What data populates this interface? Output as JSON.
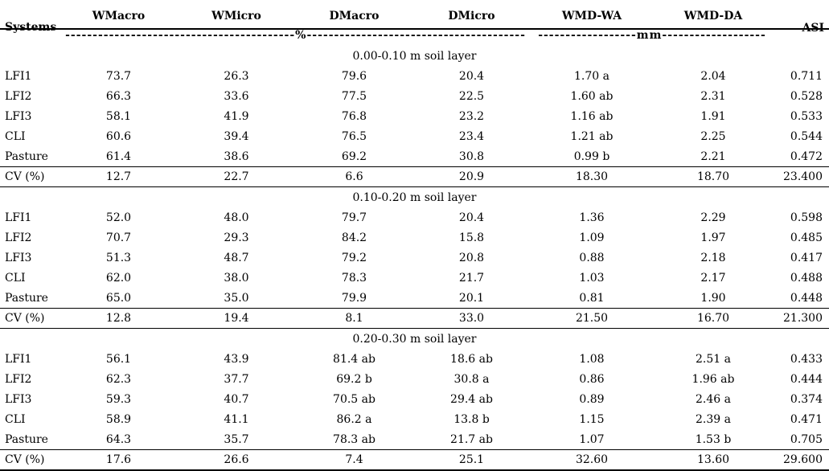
{
  "table": {
    "header": {
      "systems_label": "Systems",
      "columns": [
        "WMacro",
        "WMicro",
        "DMacro",
        "DMicro",
        "WMD-WA",
        "WMD-DA"
      ],
      "asi_label": "ASI",
      "percent_dashes": "------------------------------------------%----------------------------------------",
      "mm_dashes": "------------------mm-------------------",
      "percent_unit": "%",
      "mm_unit": "mm"
    },
    "sections": [
      {
        "title": "0.00-0.10 m soil layer",
        "rows": [
          {
            "system": "LFI1",
            "values": [
              "73.7",
              "26.3",
              "79.6",
              "20.4",
              "1.70 a",
              "2.04",
              "0.711"
            ]
          },
          {
            "system": "LFI2",
            "values": [
              "66.3",
              "33.6",
              "77.5",
              "22.5",
              "1.60 ab",
              "2.31",
              "0.528"
            ]
          },
          {
            "system": "LFI3",
            "values": [
              "58.1",
              "41.9",
              "76.8",
              "23.2",
              "1.16 ab",
              "1.91",
              "0.533"
            ]
          },
          {
            "system": "CLI",
            "values": [
              "60.6",
              "39.4",
              "76.5",
              "23.4",
              "1.21 ab",
              "2.25",
              "0.544"
            ]
          },
          {
            "system": "Pasture",
            "values": [
              "61.4",
              "38.6",
              "69.2",
              "30.8",
              "0.99 b",
              "2.21",
              "0.472"
            ]
          }
        ],
        "cv": {
          "system": "CV (%)",
          "values": [
            "12.7",
            "22.7",
            "6.6",
            "20.9",
            "18.30",
            "18.70",
            "23.400"
          ]
        }
      },
      {
        "title": "0.10-0.20 m soil layer",
        "rows": [
          {
            "system": "LFI1",
            "values": [
              "52.0",
              "48.0",
              "79.7",
              "20.4",
              "1.36",
              "2.29",
              "0.598"
            ]
          },
          {
            "system": "LFI2",
            "values": [
              "70.7",
              "29.3",
              "84.2",
              "15.8",
              "1.09",
              "1.97",
              "0.485"
            ]
          },
          {
            "system": "LFI3",
            "values": [
              "51.3",
              "48.7",
              "79.2",
              "20.8",
              "0.88",
              "2.18",
              "0.417"
            ]
          },
          {
            "system": "CLI",
            "values": [
              "62.0",
              "38.0",
              "78.3",
              "21.7",
              "1.03",
              "2.17",
              "0.488"
            ]
          },
          {
            "system": "Pasture",
            "values": [
              "65.0",
              "35.0",
              "79.9",
              "20.1",
              "0.81",
              "1.90",
              "0.448"
            ]
          }
        ],
        "cv": {
          "system": "CV (%)",
          "values": [
            "12.8",
            "19.4",
            "8.1",
            "33.0",
            "21.50",
            "16.70",
            "21.300"
          ]
        }
      },
      {
        "title": "0.20-0.30 m soil layer",
        "rows": [
          {
            "system": "LFI1",
            "values": [
              "56.1",
              "43.9",
              "81.4 ab",
              "18.6 ab",
              "1.08",
              "2.51 a",
              "0.433"
            ]
          },
          {
            "system": "LFI2",
            "values": [
              "62.3",
              "37.7",
              "69.2 b",
              "30.8 a",
              "0.86",
              "1.96 ab",
              "0.444"
            ]
          },
          {
            "system": "LFI3",
            "values": [
              "59.3",
              "40.7",
              "70.5 ab",
              "29.4 ab",
              "0.89",
              "2.46 a",
              "0.374"
            ]
          },
          {
            "system": "CLI",
            "values": [
              "58.9",
              "41.1",
              "86.2 a",
              "13.8 b",
              "1.15",
              "2.39 a",
              "0.471"
            ]
          },
          {
            "system": "Pasture",
            "values": [
              "64.3",
              "35.7",
              "78.3 ab",
              "21.7 ab",
              "1.07",
              "1.53 b",
              "0.705"
            ]
          }
        ],
        "cv": {
          "system": "CV (%)",
          "values": [
            "17.6",
            "26.6",
            "7.4",
            "25.1",
            "32.60",
            "13.60",
            "29.600"
          ]
        }
      }
    ]
  }
}
